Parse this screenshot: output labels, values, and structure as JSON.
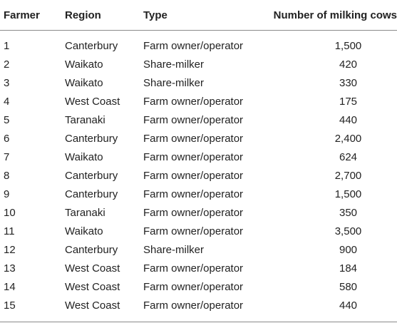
{
  "table": {
    "headers": [
      "Farmer",
      "Region",
      "Type",
      "Number of milking cows"
    ],
    "rows": [
      [
        "1",
        "Canterbury",
        "Farm owner/operator",
        "1,500"
      ],
      [
        "2",
        "Waikato",
        "Share-milker",
        "420"
      ],
      [
        "3",
        "Waikato",
        "Share-milker",
        "330"
      ],
      [
        "4",
        "West Coast",
        "Farm owner/operator",
        "175"
      ],
      [
        "5",
        "Taranaki",
        "Farm owner/operator",
        "440"
      ],
      [
        "6",
        "Canterbury",
        "Farm owner/operator",
        "2,400"
      ],
      [
        "7",
        "Waikato",
        "Farm owner/operator",
        "624"
      ],
      [
        "8",
        "Canterbury",
        "Farm owner/operator",
        "2,700"
      ],
      [
        "9",
        "Canterbury",
        "Farm owner/operator",
        "1,500"
      ],
      [
        "10",
        "Taranaki",
        "Farm owner/operator",
        "350"
      ],
      [
        "11",
        "Waikato",
        "Farm owner/operator",
        "3,500"
      ],
      [
        "12",
        "Canterbury",
        "Share-milker",
        "900"
      ],
      [
        "13",
        "West Coast",
        "Farm owner/operator",
        "184"
      ],
      [
        "14",
        "West Coast",
        "Farm owner/operator",
        "580"
      ],
      [
        "15",
        "West Coast",
        "Farm owner/operator",
        "440"
      ]
    ]
  }
}
